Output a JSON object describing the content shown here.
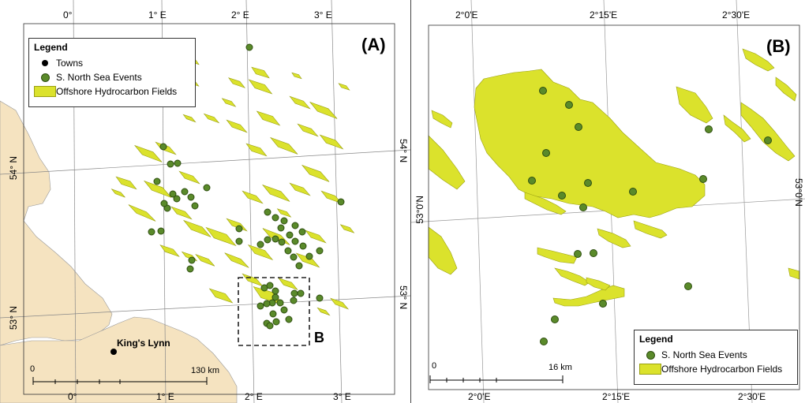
{
  "panels": {
    "a": {
      "label": "(A)",
      "top_ticks": [
        "0°",
        "1° E",
        "2° E",
        "3° E"
      ],
      "bottom_ticks": [
        "0°",
        "1° E",
        "2° E",
        "3° E"
      ],
      "left_ticks": [
        "54° N",
        "53° N"
      ],
      "right_ticks": [
        "54° N",
        "53° N"
      ],
      "legend": {
        "title": "Legend",
        "items": [
          "Towns",
          "S. North Sea Events",
          "Offshore Hydrocarbon Fields"
        ]
      },
      "town": "King's Lynn",
      "scale": {
        "start": "0",
        "end": "130 km"
      },
      "inset_label": "B"
    },
    "b": {
      "label": "(B)",
      "top_ticks": [
        "2°0'E",
        "2°15'E",
        "2°30'E"
      ],
      "bottom_ticks": [
        "2°0'E",
        "2°15'E",
        "2°30'E"
      ],
      "left_ticks": [
        "53°0'N"
      ],
      "right_ticks": [
        "53°0'N"
      ],
      "legend": {
        "title": "Legend",
        "items": [
          "S. North Sea Events",
          "Offshore Hydrocarbon Fields"
        ]
      },
      "scale": {
        "start": "0",
        "end": "16 km"
      }
    }
  },
  "colors": {
    "land": "#f5e3c0",
    "field": "#dbe22c",
    "field_outline": "#9aa012",
    "event": "#5a8a2a",
    "event_outline": "#2f4f10"
  }
}
